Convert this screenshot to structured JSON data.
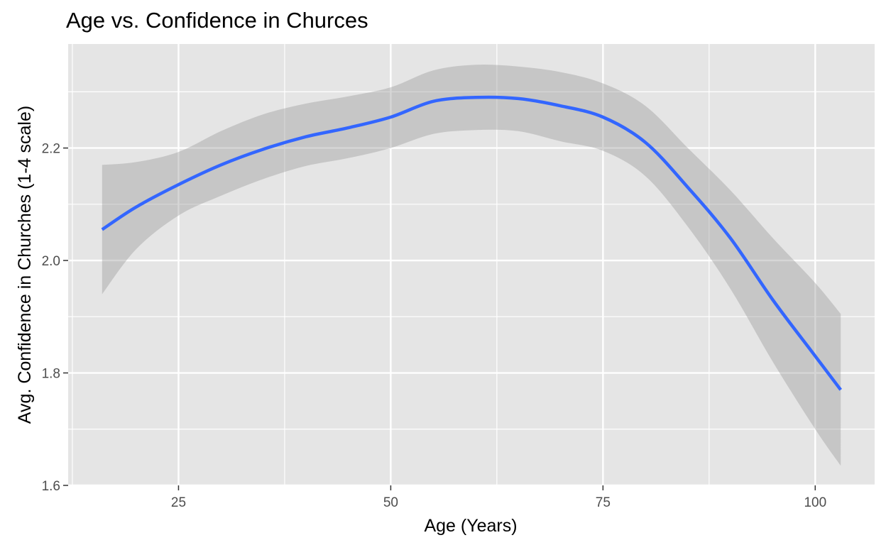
{
  "chart_data": {
    "type": "line",
    "title": "Age vs. Confidence in Churces",
    "xlabel": "Age (Years)",
    "ylabel": "Avg. Confidence in Churches (1-4 scale)",
    "xlim": [
      12,
      107
    ],
    "ylim": [
      1.6,
      2.385
    ],
    "x_ticks": [
      25,
      50,
      75,
      100
    ],
    "y_ticks": [
      1.6,
      1.8,
      2.0,
      2.2
    ],
    "x_tick_labels": [
      "25",
      "50",
      "75",
      "100"
    ],
    "y_tick_labels": [
      "1.6",
      "1.8",
      "2.0",
      "2.2"
    ],
    "grid": true,
    "legend": "none",
    "colors": {
      "line": "#3366ff",
      "band": "#999999",
      "panel": "#e5e5e5",
      "grid": "#ffffff"
    },
    "series": [
      {
        "x": [
          16,
          20,
          25,
          30,
          35,
          40,
          45,
          50,
          55,
          60,
          65,
          70,
          75,
          80,
          85,
          90,
          95,
          100,
          103
        ],
        "y": [
          2.055,
          2.095,
          2.135,
          2.17,
          2.198,
          2.22,
          2.236,
          2.255,
          2.283,
          2.29,
          2.288,
          2.275,
          2.255,
          2.21,
          2.13,
          2.04,
          1.93,
          1.83,
          1.77
        ],
        "lower": [
          1.94,
          2.02,
          2.08,
          2.115,
          2.145,
          2.168,
          2.182,
          2.2,
          2.225,
          2.232,
          2.23,
          2.212,
          2.195,
          2.15,
          2.06,
          1.95,
          1.82,
          1.7,
          1.635
        ],
        "upper": [
          2.17,
          2.175,
          2.193,
          2.23,
          2.26,
          2.279,
          2.292,
          2.308,
          2.338,
          2.348,
          2.345,
          2.335,
          2.315,
          2.275,
          2.2,
          2.125,
          2.04,
          1.96,
          1.905
        ]
      }
    ]
  }
}
